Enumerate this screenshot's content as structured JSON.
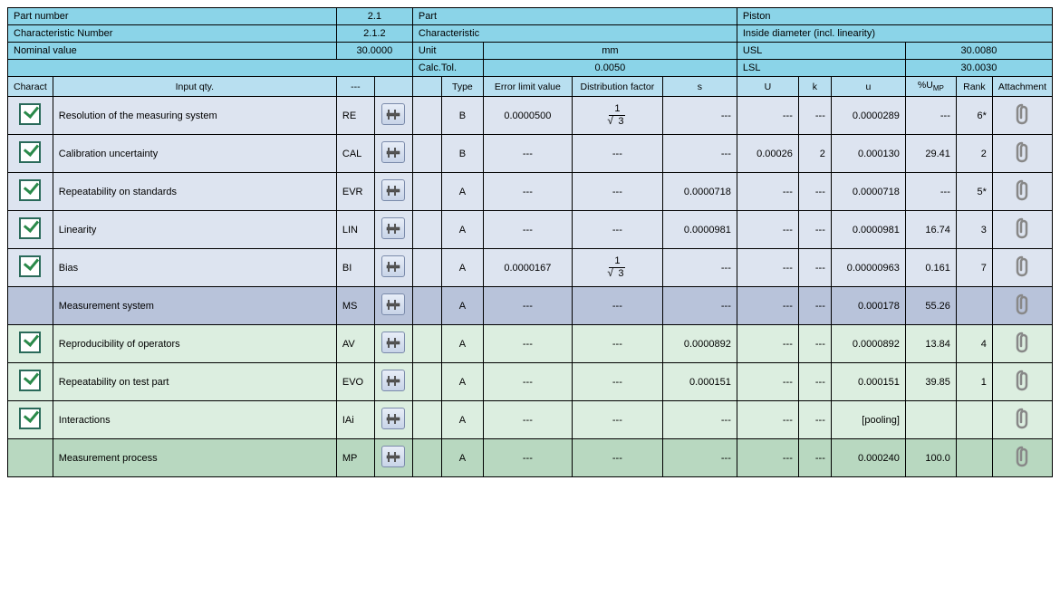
{
  "header": {
    "part_number_label": "Part number",
    "part_number_value": "2.1",
    "part_label": "Part",
    "part_value": "Piston",
    "char_number_label": "Characteristic Number",
    "char_number_value": "2.1.2",
    "char_label": "Characteristic",
    "char_value": "Inside diameter (incl. linearity)",
    "nominal_label": "Nominal value",
    "nominal_value": "30.0000",
    "unit_label": "Unit",
    "unit_value": "mm",
    "usl_label": "USL",
    "usl_value": "30.0080",
    "calctol_label": "Calc.Tol.",
    "calctol_value": "0.0050",
    "lsl_label": "LSL",
    "lsl_value": "30.0030"
  },
  "columns": {
    "charact": "Charact",
    "input_qty": "Input qty.",
    "dash": "---",
    "type": "Type",
    "elv": "Error limit value",
    "df": "Distribution factor",
    "s": "s",
    "U": "U",
    "k": "k",
    "u": "u",
    "ump_html": "%U<sub>MP</sub>",
    "rank": "Rank",
    "att": "Attachment"
  },
  "rows": [
    {
      "style": "blue",
      "check": true,
      "input": "Resolution of the measuring system",
      "code": "RE",
      "type": "B",
      "elv": "0.0000500",
      "df": "frac",
      "s": "---",
      "U": "---",
      "k": "---",
      "u": "0.0000289",
      "ump": "---",
      "rank": "6*"
    },
    {
      "style": "blue",
      "check": true,
      "input": "Calibration uncertainty",
      "code": "CAL",
      "type": "B",
      "elv": "---",
      "df": "---",
      "s": "---",
      "U": "0.00026",
      "k": "2",
      "u": "0.000130",
      "ump": "29.41",
      "rank": "2"
    },
    {
      "style": "blue",
      "check": true,
      "input": "Repeatability on standards",
      "code": "EVR",
      "type": "A",
      "elv": "---",
      "df": "---",
      "s": "0.0000718",
      "U": "---",
      "k": "---",
      "u": "0.0000718",
      "ump": "---",
      "rank": "5*"
    },
    {
      "style": "blue",
      "check": true,
      "input": "Linearity",
      "code": "LIN",
      "type": "A",
      "elv": "---",
      "df": "---",
      "s": "0.0000981",
      "U": "---",
      "k": "---",
      "u": "0.0000981",
      "ump": "16.74",
      "rank": "3"
    },
    {
      "style": "blue",
      "check": true,
      "input": "Bias",
      "code": "BI",
      "type": "A",
      "elv": "0.0000167",
      "df": "frac",
      "s": "---",
      "U": "---",
      "k": "---",
      "u": "0.00000963",
      "ump": "0.161",
      "rank": "7"
    },
    {
      "style": "bluedark",
      "check": false,
      "input": "Measurement system",
      "code": "MS",
      "type": "A",
      "elv": "---",
      "df": "---",
      "s": "---",
      "U": "---",
      "k": "---",
      "u": "0.000178",
      "ump": "55.26",
      "rank": ""
    },
    {
      "style": "green",
      "check": true,
      "input": "Reproducibility of operators",
      "code": "AV",
      "type": "A",
      "elv": "---",
      "df": "---",
      "s": "0.0000892",
      "U": "---",
      "k": "---",
      "u": "0.0000892",
      "ump": "13.84",
      "rank": "4"
    },
    {
      "style": "green",
      "check": true,
      "input": "Repeatability on test part",
      "code": "EVO",
      "type": "A",
      "elv": "---",
      "df": "---",
      "s": "0.000151",
      "U": "---",
      "k": "---",
      "u": "0.000151",
      "ump": "39.85",
      "rank": "1"
    },
    {
      "style": "green",
      "check": true,
      "input": "Interactions",
      "code": "IAi",
      "type": "A",
      "elv": "---",
      "df": "---",
      "s": "---",
      "U": "---",
      "k": "---",
      "u": "[pooling]",
      "ump": "",
      "rank": ""
    },
    {
      "style": "greendark",
      "check": false,
      "input": "Measurement process",
      "code": "MP",
      "type": "A",
      "elv": "---",
      "df": "---",
      "s": "---",
      "U": "---",
      "k": "---",
      "u": "0.000240",
      "ump": "100.0",
      "rank": ""
    }
  ],
  "colors": {
    "header_bg": "#8bd4e8",
    "colhdr_bg": "#b8dff0",
    "row_blue": "#dde4f0",
    "row_bluedark": "#b8c3da",
    "row_green": "#dceee0",
    "row_greendark": "#b8d8c0",
    "border": "#000000",
    "check_border": "#2a6a5a",
    "check_fill": "#2a8a4a"
  }
}
